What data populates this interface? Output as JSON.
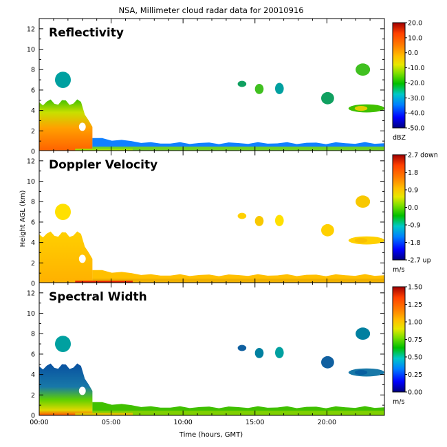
{
  "chart_data": {
    "type": "heatmap",
    "title": "NSA, Millimeter cloud radar data for 20010916",
    "xlabel": "Time (hours, GMT)",
    "ylabel": "Height AGL (km)",
    "xlim": [
      0,
      24
    ],
    "ylim": [
      0,
      13
    ],
    "x_ticks": [
      "00:00",
      "05:00",
      "10:00",
      "15:00",
      "20:00"
    ],
    "x_tick_values": [
      0,
      5,
      10,
      15,
      20
    ],
    "y_ticks": [
      "0",
      "2",
      "4",
      "6",
      "8",
      "10",
      "12"
    ],
    "y_tick_values": [
      0,
      2,
      4,
      6,
      8,
      10,
      12
    ],
    "panels": [
      {
        "title": "Reflectivity",
        "unit": "dBZ",
        "colorbar_ticks": [
          "20.0",
          "10.0",
          "0.0",
          "-10.0",
          "-20.0",
          "-30.0",
          "-40.0",
          "-50.0"
        ],
        "colorbar_range": [
          -50,
          20
        ],
        "cloud_field": "reflectivity"
      },
      {
        "title": "Doppler Velocity",
        "unit": "m/s",
        "colorbar_ticks": [
          "2.7 down",
          "1.8",
          "0.9",
          "0.0",
          "-0.9",
          "-1.8",
          "-2.7 up"
        ],
        "colorbar_range": [
          -2.7,
          2.7
        ],
        "cloud_field": "velocity"
      },
      {
        "title": "Spectral Width",
        "unit": "m/s",
        "colorbar_ticks": [
          "1.50",
          "1.25",
          "1.00",
          "0.75",
          "0.50",
          "0.25",
          "0.00"
        ],
        "colorbar_range": [
          0,
          1.5
        ],
        "cloud_field": "width"
      }
    ],
    "cloud_features": [
      {
        "name": "deep-cloud",
        "t_start": 0,
        "t_end": 3.7,
        "top_km": 4.8,
        "base_km": 0
      },
      {
        "name": "low-cloud-layer",
        "t_start": 3.7,
        "t_end": 24,
        "top_km": 0.9,
        "base_km": 0
      },
      {
        "name": "high-cloud-1",
        "t_start": 1.1,
        "t_end": 2.2,
        "top_km": 7.8,
        "base_km": 6.2
      },
      {
        "name": "high-cloud-2",
        "t_start": 13.8,
        "t_end": 14.4,
        "top_km": 6.9,
        "base_km": 6.3
      },
      {
        "name": "high-cloud-3",
        "t_start": 15.0,
        "t_end": 15.6,
        "top_km": 6.6,
        "base_km": 5.6
      },
      {
        "name": "high-cloud-4",
        "t_start": 16.4,
        "t_end": 17.0,
        "top_km": 6.7,
        "base_km": 5.6
      },
      {
        "name": "high-cloud-5",
        "t_start": 19.6,
        "t_end": 20.5,
        "top_km": 5.8,
        "base_km": 4.6
      },
      {
        "name": "high-cloud-6",
        "t_start": 22.0,
        "t_end": 23.0,
        "top_km": 8.6,
        "base_km": 7.4
      },
      {
        "name": "mid-layer",
        "t_start": 21.5,
        "t_end": 24,
        "top_km": 4.6,
        "base_km": 3.8
      }
    ]
  },
  "colors": {
    "colormap": [
      "#00007f",
      "#0000ff",
      "#0080ff",
      "#00c8c8",
      "#00c000",
      "#80e000",
      "#e8e800",
      "#ffc000",
      "#ff8000",
      "#ff4000",
      "#a00000"
    ],
    "axes": "#000000",
    "background": "#ffffff"
  }
}
